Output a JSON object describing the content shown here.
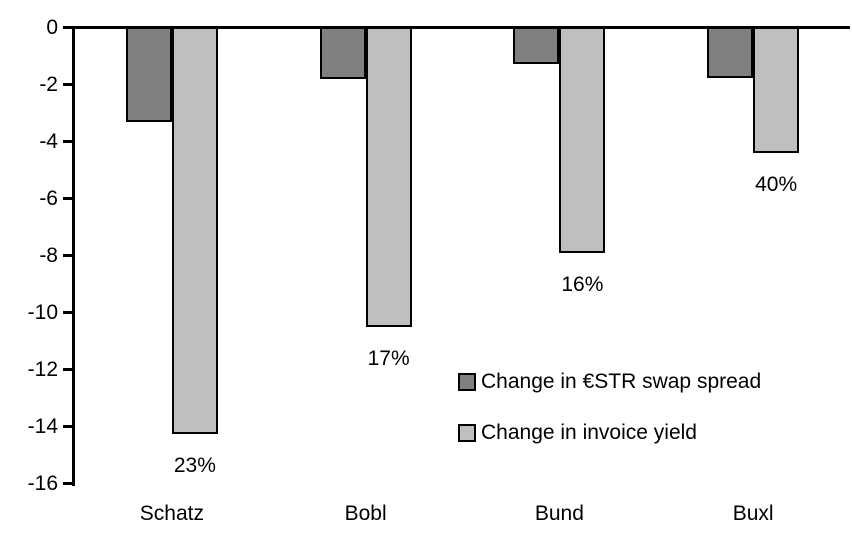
{
  "colors": {
    "spread_fill": "#7F7F7F",
    "yield_fill": "#BFBFBF",
    "axis": "#000000",
    "background": "#FFFFFF"
  },
  "chart_data": {
    "type": "bar",
    "title": "",
    "xlabel": "",
    "ylabel": "",
    "categories": [
      "Schatz",
      "Bobl",
      "Bund",
      "Buxl"
    ],
    "series": [
      {
        "name": "Change in €STR swap spread",
        "color_key": "spread_fill",
        "values": [
          -3.3,
          -1.8,
          -1.25,
          -1.75
        ]
      },
      {
        "name": "Change in invoice yield",
        "color_key": "yield_fill",
        "values": [
          -14.25,
          -10.5,
          -7.9,
          -4.4
        ],
        "point_labels": [
          "23%",
          "17%",
          "16%",
          "40%"
        ]
      }
    ],
    "ylim": [
      -16,
      0
    ],
    "yticks": [
      0,
      -2,
      -4,
      -6,
      -8,
      -10,
      -12,
      -14,
      -16
    ],
    "grid": false,
    "legend_position": "inside-right"
  }
}
